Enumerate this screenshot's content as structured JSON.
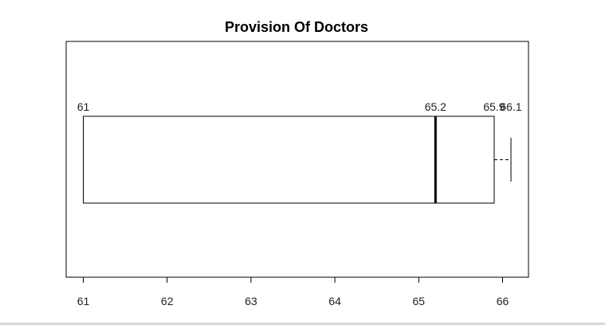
{
  "chart_data": {
    "type": "boxplot",
    "orientation": "horizontal",
    "title": "Provision Of Doctors",
    "xlabel": "",
    "ylabel": "",
    "xlim": [
      61,
      66
    ],
    "ticks": [
      61,
      62,
      63,
      64,
      65,
      66
    ],
    "tick_labels": [
      "61",
      "62",
      "63",
      "64",
      "65",
      "66"
    ],
    "box": {
      "q1": 61,
      "median": 65.2,
      "q3": 65.9,
      "whisker_low": 61,
      "whisker_high": 66.1
    },
    "value_labels": [
      "61",
      "65.2",
      "65.9",
      "66.1"
    ],
    "grid": false,
    "legend": "none"
  }
}
